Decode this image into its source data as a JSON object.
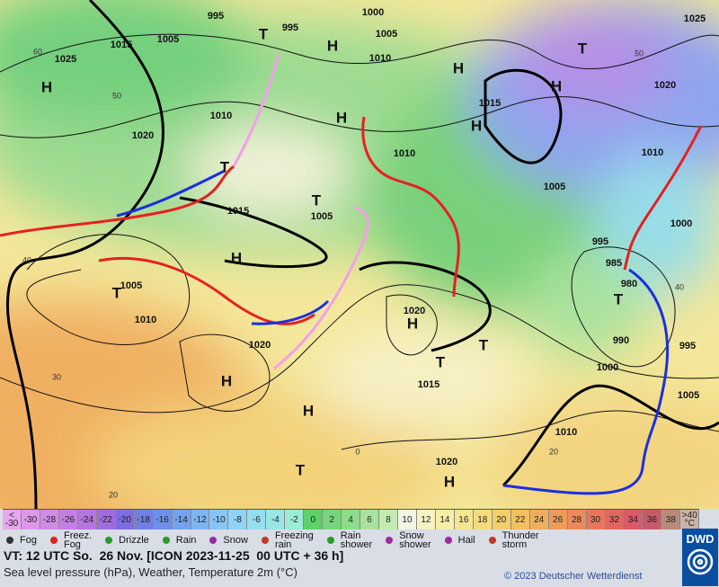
{
  "map": {
    "pressure_labels": [
      "995",
      "1000",
      "1025",
      "1015",
      "1005",
      "995",
      "1005",
      "1010",
      "1025",
      "1020",
      "1010",
      "1015",
      "1020",
      "1010",
      "1010",
      "1005",
      "1015",
      "1005",
      "1000",
      "995",
      "985",
      "980",
      "1005",
      "1010",
      "1020",
      "990",
      "995",
      "1020",
      "1000",
      "1015",
      "1005",
      "1010",
      "1020"
    ],
    "centers": [
      "H",
      "T",
      "H",
      "H",
      "H",
      "T",
      "H",
      "H",
      "T",
      "T",
      "H",
      "T",
      "H",
      "T",
      "T",
      "T",
      "H",
      "H",
      "T",
      "H"
    ],
    "grid_labels": [
      "60",
      "50",
      "40",
      "30",
      "20",
      "50",
      "40",
      "20",
      "0"
    ]
  },
  "color_scale": [
    {
      "label": "<\n-30",
      "color": "#e7a6ee"
    },
    {
      "label": "-30",
      "color": "#dd98ea"
    },
    {
      "label": "-28",
      "color": "#d18be6"
    },
    {
      "label": "-26",
      "color": "#c57fe2"
    },
    {
      "label": "-24",
      "color": "#b574de"
    },
    {
      "label": "-22",
      "color": "#a06cdc"
    },
    {
      "label": "-20",
      "color": "#7f6de0"
    },
    {
      "label": "-18",
      "color": "#6f7fe6"
    },
    {
      "label": "-16",
      "color": "#6e90ea"
    },
    {
      "label": "-14",
      "color": "#74a2ee"
    },
    {
      "label": "-12",
      "color": "#7db4f2"
    },
    {
      "label": "-10",
      "color": "#88c5f4"
    },
    {
      "label": "-8",
      "color": "#90d3f4"
    },
    {
      "label": "-6",
      "color": "#95def0"
    },
    {
      "label": "-4",
      "color": "#98e6e6"
    },
    {
      "label": "-2",
      "color": "#9aecd6"
    },
    {
      "label": "0",
      "color": "#5fd06a"
    },
    {
      "label": "2",
      "color": "#75d67a"
    },
    {
      "label": "4",
      "color": "#8edc8a"
    },
    {
      "label": "6",
      "color": "#a8e29c"
    },
    {
      "label": "8",
      "color": "#c4eab0"
    },
    {
      "label": "10",
      "color": "#f4f4e6"
    },
    {
      "label": "12",
      "color": "#f6f3c4"
    },
    {
      "label": "14",
      "color": "#f6efa8"
    },
    {
      "label": "16",
      "color": "#f5e690"
    },
    {
      "label": "18",
      "color": "#f4dc7c"
    },
    {
      "label": "20",
      "color": "#f3cf6c"
    },
    {
      "label": "22",
      "color": "#f2bf62"
    },
    {
      "label": "24",
      "color": "#f0ae5c"
    },
    {
      "label": "26",
      "color": "#ee9c5a"
    },
    {
      "label": "28",
      "color": "#ec8a5c"
    },
    {
      "label": "30",
      "color": "#e8765e"
    },
    {
      "label": "32",
      "color": "#e26662"
    },
    {
      "label": "34",
      "color": "#d95a66"
    },
    {
      "label": "36",
      "color": "#c95868"
    },
    {
      "label": "38",
      "color": "#b88a7c"
    },
    {
      "label": ">40\n°C",
      "color": "#c9b2a6"
    }
  ],
  "weather_legend": [
    "Fog",
    "Freez.\nFog",
    "Drizzle",
    "Rain",
    "Snow",
    "Freezing\nrain",
    "Rain\nshower",
    "Snow\nshower",
    "Hail",
    "Thunder\nstorm"
  ],
  "footer": {
    "valid_time": "VT: 12 UTC So.  26 Nov. [ICON 2023-11-25  00 UTC + 36 h]",
    "description": "Sea level pressure (hPa), Weather, Temperature 2m (°C)",
    "copyright": "© 2023 Deutscher Wetterdienst",
    "logo": "DWD"
  }
}
